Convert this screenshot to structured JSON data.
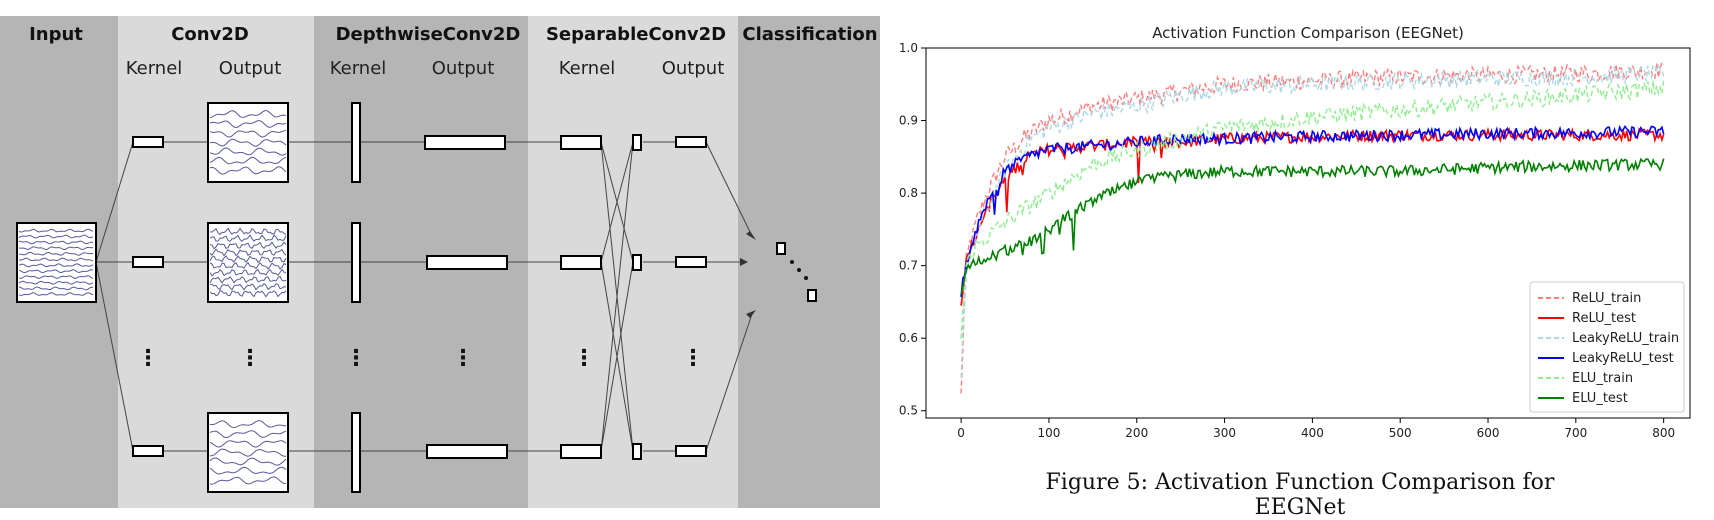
{
  "diagram": {
    "sections": [
      {
        "label": "Input",
        "color": "#b5b5b5"
      },
      {
        "label": "Conv2D",
        "color": "#dadada"
      },
      {
        "label": "DepthwiseConv2D",
        "color": "#b5b5b5"
      },
      {
        "label": "SeparableConv2D",
        "color": "#dadada"
      },
      {
        "label": "Classification",
        "color": "#b5b5b5"
      }
    ],
    "sublabels": {
      "kernel": "Kernel",
      "output": "Output"
    },
    "ellipsis": "⋮",
    "wave_color": "#5a5a9a"
  },
  "chart_data": {
    "type": "line",
    "title": "Activation Function Comparison (EEGNet)",
    "xlim": [
      -40,
      830
    ],
    "ylim": [
      0.49,
      1.0
    ],
    "xticks": [
      0,
      100,
      200,
      300,
      400,
      500,
      600,
      700,
      800
    ],
    "yticks": [
      0.5,
      0.6,
      0.7,
      0.8,
      0.9,
      1.0
    ],
    "legend_position": "lower-right",
    "grid": false,
    "series": [
      {
        "name": "ReLU_train",
        "color": "#ff7f7f",
        "dash": true,
        "x": [
          0,
          5,
          10,
          20,
          30,
          50,
          75,
          100,
          150,
          200,
          250,
          300,
          400,
          500,
          600,
          700,
          800
        ],
        "y": [
          0.52,
          0.7,
          0.73,
          0.77,
          0.8,
          0.85,
          0.88,
          0.9,
          0.92,
          0.93,
          0.94,
          0.95,
          0.955,
          0.96,
          0.962,
          0.965,
          0.97
        ]
      },
      {
        "name": "ReLU_test",
        "color": "#ff0000",
        "dash": false,
        "x": [
          0,
          5,
          10,
          20,
          30,
          50,
          75,
          100,
          150,
          200,
          250,
          300,
          400,
          500,
          600,
          700,
          800
        ],
        "y": [
          0.65,
          0.7,
          0.72,
          0.75,
          0.78,
          0.82,
          0.85,
          0.86,
          0.865,
          0.87,
          0.87,
          0.875,
          0.878,
          0.88,
          0.88,
          0.88,
          0.88
        ]
      },
      {
        "name": "LeakyReLU_train",
        "color": "#add8e6",
        "dash": true,
        "x": [
          0,
          5,
          10,
          20,
          30,
          50,
          75,
          100,
          150,
          200,
          250,
          300,
          400,
          500,
          600,
          700,
          800
        ],
        "y": [
          0.55,
          0.68,
          0.71,
          0.75,
          0.78,
          0.83,
          0.87,
          0.89,
          0.91,
          0.92,
          0.935,
          0.945,
          0.95,
          0.955,
          0.958,
          0.96,
          0.965
        ]
      },
      {
        "name": "LeakyReLU_test",
        "color": "#0000ff",
        "dash": false,
        "x": [
          0,
          5,
          10,
          20,
          30,
          50,
          75,
          100,
          150,
          200,
          250,
          300,
          400,
          500,
          600,
          700,
          800
        ],
        "y": [
          0.66,
          0.7,
          0.72,
          0.76,
          0.79,
          0.83,
          0.85,
          0.86,
          0.865,
          0.87,
          0.875,
          0.875,
          0.878,
          0.88,
          0.882,
          0.883,
          0.885
        ]
      },
      {
        "name": "ELU_train",
        "color": "#90ee90",
        "dash": true,
        "x": [
          0,
          5,
          10,
          20,
          30,
          50,
          75,
          100,
          150,
          200,
          250,
          300,
          400,
          500,
          600,
          700,
          800
        ],
        "y": [
          0.6,
          0.7,
          0.71,
          0.73,
          0.74,
          0.76,
          0.78,
          0.8,
          0.84,
          0.86,
          0.875,
          0.89,
          0.905,
          0.915,
          0.925,
          0.935,
          0.945
        ]
      },
      {
        "name": "ELU_test",
        "color": "#008000",
        "dash": false,
        "x": [
          0,
          5,
          10,
          20,
          30,
          50,
          75,
          100,
          150,
          200,
          250,
          300,
          400,
          500,
          600,
          700,
          800
        ],
        "y": [
          0.66,
          0.69,
          0.7,
          0.705,
          0.71,
          0.72,
          0.73,
          0.75,
          0.79,
          0.815,
          0.825,
          0.83,
          0.83,
          0.83,
          0.835,
          0.838,
          0.84
        ]
      }
    ]
  },
  "caption": "Figure 5: Activation Function Comparison for EEGNet"
}
